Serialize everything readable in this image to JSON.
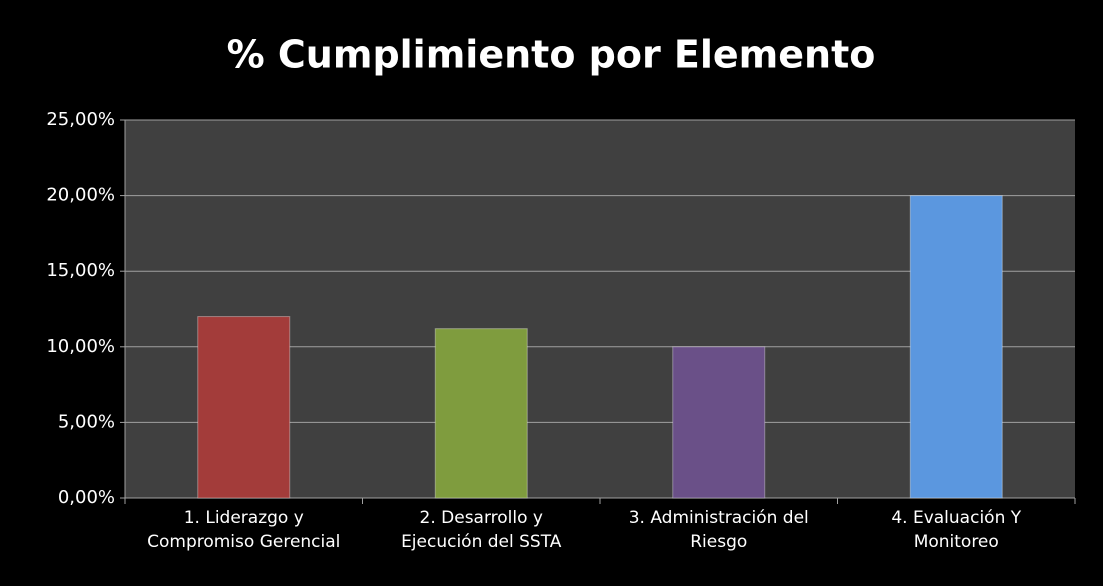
{
  "chart_data": {
    "type": "bar",
    "title": "% Cumplimiento por Elemento",
    "categories": [
      "1. Liderazgo y\nCompromiso Gerencial",
      "2. Desarrollo y\nEjecución del SSTA",
      "3. Administración del\nRiesgo",
      "4. Evaluación Y\nMonitoreo"
    ],
    "values": [
      12.0,
      11.2,
      10.0,
      20.0
    ],
    "colors": [
      "#a33c3a",
      "#7f9c3e",
      "#6a5088",
      "#5b97df"
    ],
    "ylim": [
      0,
      25
    ],
    "yticks": [
      {
        "value": 0,
        "label": "0,00%"
      },
      {
        "value": 5,
        "label": "5,00%"
      },
      {
        "value": 10,
        "label": "10,00%"
      },
      {
        "value": 15,
        "label": "15,00%"
      },
      {
        "value": 20,
        "label": "20,00%"
      },
      {
        "value": 25,
        "label": "25,00%"
      }
    ],
    "grid": true
  }
}
